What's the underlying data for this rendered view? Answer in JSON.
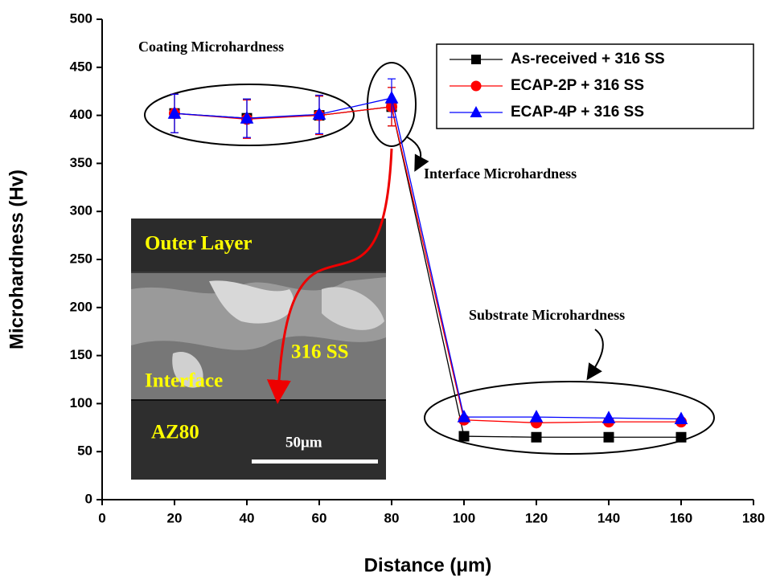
{
  "chart_data": {
    "type": "line",
    "xlabel": "Distance (μm)",
    "ylabel": "Microhardness (Hv)",
    "x": [
      20,
      40,
      60,
      80,
      100,
      120,
      140,
      160
    ],
    "series": [
      {
        "name": "As-received + 316 SS",
        "color": "#000000",
        "marker": "square",
        "values": [
          402,
          397,
          400,
          409,
          66,
          65,
          65,
          65
        ],
        "errors": [
          20,
          20,
          20,
          20,
          null,
          null,
          null,
          null
        ]
      },
      {
        "name": "ECAP-2P + 316 SS",
        "color": "#ff0000",
        "marker": "circle",
        "values": [
          402,
          396,
          400,
          409,
          83,
          80,
          81,
          81
        ],
        "errors": [
          20,
          20,
          20,
          20,
          null,
          null,
          null,
          null
        ]
      },
      {
        "name": "ECAP-4P + 316 SS",
        "color": "#0000ff",
        "marker": "triangle",
        "values": [
          402,
          397,
          401,
          418,
          86,
          86,
          85,
          84
        ],
        "errors": [
          20,
          20,
          20,
          20,
          null,
          null,
          null,
          null
        ]
      }
    ],
    "xlim": [
      0,
      180
    ],
    "xticks": [
      0,
      20,
      40,
      60,
      80,
      100,
      120,
      140,
      160,
      180
    ],
    "ylim": [
      0,
      500
    ],
    "yticks": [
      0,
      50,
      100,
      150,
      200,
      250,
      300,
      350,
      400,
      450,
      500
    ],
    "legend": "upper right",
    "annotations": {
      "coating": "Coating Microhardness",
      "interface": "Interface Microhardness",
      "substrate": "Substrate Microhardness"
    },
    "inset": {
      "outer_layer": "Outer Layer",
      "coating": "316 SS",
      "interface": "Interface",
      "substrate": "AZ80",
      "scale_bar": "50μm"
    }
  }
}
